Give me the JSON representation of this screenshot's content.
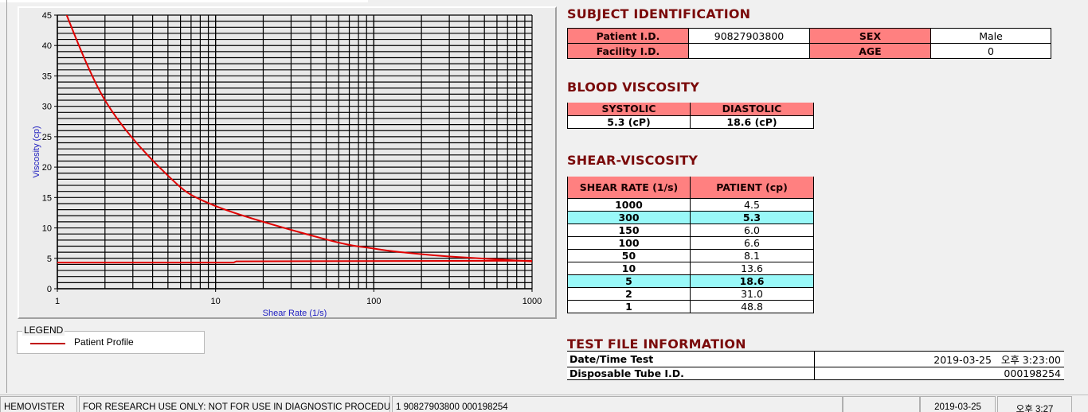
{
  "chart_data": {
    "type": "line",
    "xlabel": "Shear Rate (1/s)",
    "ylabel": "Viscosity (cp)",
    "x_scale": "log",
    "xlim": [
      1,
      1000
    ],
    "ylim": [
      0,
      45
    ],
    "x_ticks": [
      "1",
      "10",
      "100",
      "1000"
    ],
    "y_ticks": [
      "0",
      "5",
      "10",
      "15",
      "20",
      "25",
      "30",
      "35",
      "40",
      "45"
    ],
    "grid": true,
    "series": [
      {
        "name": "Patient Profile",
        "color": "#e00000",
        "x": [
          1,
          2,
          5,
          10,
          50,
          100,
          150,
          300,
          1000
        ],
        "y": [
          48.8,
          31.0,
          18.6,
          13.6,
          8.1,
          6.6,
          6.0,
          5.3,
          4.5
        ]
      },
      {
        "color": "#e00000",
        "x": [
          1,
          13,
          13.5,
          1000
        ],
        "y": [
          4.3,
          4.3,
          4.5,
          4.6
        ]
      }
    ]
  },
  "legend": {
    "title": "LEGEND",
    "items": [
      {
        "label": "Patient Profile",
        "color": "#e00000"
      }
    ]
  },
  "subject": {
    "title": "SUBJECT IDENTIFICATION",
    "patient_id_label": "Patient I.D.",
    "patient_id": "90827903800",
    "sex_label": "SEX",
    "sex": "Male",
    "facility_label": "Facility I.D.",
    "facility": "",
    "age_label": "AGE",
    "age": "0"
  },
  "blood": {
    "title": "BLOOD VISCOSITY",
    "systolic_label": "SYSTOLIC",
    "diastolic_label": "DIASTOLIC",
    "systolic": "5.3 (cP)",
    "diastolic": "18.6 (cP)"
  },
  "shear": {
    "title": "SHEAR-VISCOSITY",
    "col1": "SHEAR RATE (1/s)",
    "col2": "PATIENT (cp)",
    "rows": [
      {
        "rate": "1000",
        "val": "4.5"
      },
      {
        "rate": "300",
        "val": "5.3",
        "hl": true
      },
      {
        "rate": "150",
        "val": "6.0"
      },
      {
        "rate": "100",
        "val": "6.6"
      },
      {
        "rate": "50",
        "val": "8.1"
      },
      {
        "rate": "10",
        "val": "13.6"
      },
      {
        "rate": "5",
        "val": "18.6",
        "hl": true
      },
      {
        "rate": "2",
        "val": "31.0"
      },
      {
        "rate": "1",
        "val": "48.8"
      }
    ],
    "highlight_color": "#99f8f8"
  },
  "testfile": {
    "title": "TEST FILE INFORMATION",
    "date_label": "Date/Time Test",
    "date": "2019-03-25   오후 3:23:00",
    "tube_label": "Disposable Tube I.D.",
    "tube": "000198254"
  },
  "status": {
    "app": "HEMOVISTER",
    "notice": "FOR RESEARCH USE ONLY: NOT FOR USE IN DIAGNOSTIC PROCEDURES",
    "record": "1  90827903800  000198254",
    "empty": "",
    "date": "2019-03-25",
    "time": "오후 3:27"
  }
}
